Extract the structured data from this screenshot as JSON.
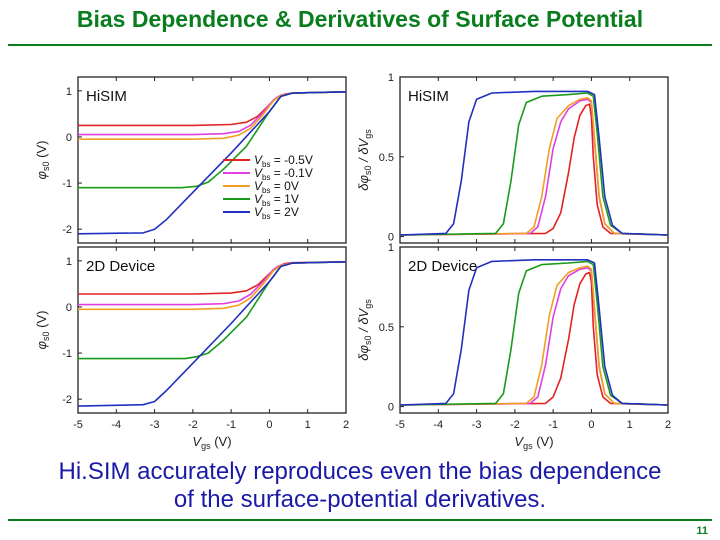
{
  "slide": {
    "title": "Bias Dependence & Derivatives of Surface Potential",
    "caption_line1": "Hi.SIM accurately reproduces even the bias dependence",
    "caption_line2": "of the surface-potential derivatives.",
    "page_number": "11"
  },
  "colors": {
    "title": "#0a7d1e",
    "caption": "#1a1aa8",
    "series": [
      "#e32222",
      "#e040e0",
      "#f0a020",
      "#1a9a1a",
      "#2030c0"
    ]
  },
  "chart_data": [
    {
      "type": "line",
      "id": "phi_hisim",
      "panel_label": "HiSIM",
      "ylabel_main": "φ",
      "ylabel_sub": "s0",
      "ylabel_unit": " (V)",
      "ylim": [
        -2.3,
        1.3
      ],
      "yticks": [
        "1",
        "0",
        "-1",
        "-2"
      ],
      "ytick_values": [
        1,
        0,
        -1,
        -2
      ],
      "xlim": [
        -5,
        2
      ],
      "series": [
        {
          "name": "V_bs = -0.5V",
          "x": [
            -5,
            -2.0,
            -1.0,
            -0.6,
            -0.3,
            0.0,
            0.2,
            0.4,
            0.6,
            2.0
          ],
          "y": [
            0.25,
            0.25,
            0.27,
            0.32,
            0.45,
            0.7,
            0.86,
            0.93,
            0.95,
            0.98
          ]
        },
        {
          "name": "V_bs = -0.1V",
          "x": [
            -5,
            -2.0,
            -1.2,
            -0.8,
            -0.5,
            -0.2,
            0.1,
            0.3,
            0.6,
            2.0
          ],
          "y": [
            0.05,
            0.05,
            0.07,
            0.12,
            0.25,
            0.5,
            0.8,
            0.91,
            0.95,
            0.98
          ]
        },
        {
          "name": "V_bs = 0V",
          "x": [
            -5,
            -2.0,
            -1.2,
            -0.8,
            -0.5,
            -0.2,
            0.1,
            0.3,
            0.6,
            2.0
          ],
          "y": [
            -0.05,
            -0.05,
            -0.03,
            0.04,
            0.18,
            0.45,
            0.78,
            0.9,
            0.95,
            0.98
          ]
        },
        {
          "name": "V_bs = 1V",
          "x": [
            -5,
            -2.3,
            -1.9,
            -1.6,
            -1.2,
            -0.6,
            0.0,
            0.3,
            0.6,
            2.0
          ],
          "y": [
            -1.1,
            -1.1,
            -1.07,
            -0.98,
            -0.7,
            -0.2,
            0.55,
            0.88,
            0.95,
            0.98
          ]
        },
        {
          "name": "V_bs = 2V",
          "x": [
            -5,
            -3.3,
            -3.0,
            -2.7,
            -2.0,
            -1.0,
            0.0,
            0.3,
            0.6,
            2.0
          ],
          "y": [
            -2.1,
            -2.08,
            -2.0,
            -1.8,
            -1.2,
            -0.35,
            0.55,
            0.88,
            0.95,
            0.98
          ]
        }
      ],
      "legend": {
        "placement": "center-right",
        "entries": [
          {
            "main": "V",
            "sub": "bs",
            "value": " = -0.5V"
          },
          {
            "main": "V",
            "sub": "bs",
            "value": " = -0.1V"
          },
          {
            "main": "V",
            "sub": "bs",
            "value": " = 0V"
          },
          {
            "main": "V",
            "sub": "bs",
            "value": " = 1V"
          },
          {
            "main": "V",
            "sub": "bs",
            "value": " = 2V"
          }
        ]
      }
    },
    {
      "type": "line",
      "id": "deriv_hisim",
      "panel_label": "HiSIM",
      "ylabel_main": "δφ",
      "ylabel_sub": "s0",
      "ylabel_mid": " / δV",
      "ylabel_sub2": "gs",
      "ylim": [
        -0.04,
        1.0
      ],
      "yticks": [
        "1",
        "0.5",
        "0"
      ],
      "ytick_values": [
        1,
        0.5,
        0
      ],
      "xlim": [
        -5,
        2
      ],
      "series": [
        {
          "name": "V_bs = -0.5V",
          "x": [
            -5,
            -1.2,
            -1.0,
            -0.8,
            -0.6,
            -0.45,
            -0.3,
            -0.15,
            -0.05,
            0.0,
            0.05,
            0.15,
            0.3,
            0.5,
            2.0
          ],
          "y": [
            0.01,
            0.02,
            0.05,
            0.15,
            0.4,
            0.62,
            0.76,
            0.82,
            0.83,
            0.75,
            0.5,
            0.2,
            0.06,
            0.02,
            0.01
          ]
        },
        {
          "name": "V_bs = -0.1V",
          "x": [
            -5,
            -1.6,
            -1.4,
            -1.2,
            -1.0,
            -0.8,
            -0.6,
            -0.3,
            -0.1,
            0.0,
            0.08,
            0.2,
            0.35,
            0.6,
            2.0
          ],
          "y": [
            0.01,
            0.02,
            0.06,
            0.25,
            0.55,
            0.72,
            0.8,
            0.85,
            0.86,
            0.84,
            0.6,
            0.25,
            0.08,
            0.02,
            0.01
          ]
        },
        {
          "name": "V_bs = 0V",
          "x": [
            -5,
            -1.7,
            -1.5,
            -1.3,
            -1.1,
            -0.9,
            -0.6,
            -0.3,
            -0.1,
            0.0,
            0.08,
            0.2,
            0.35,
            0.6,
            2.0
          ],
          "y": [
            0.01,
            0.02,
            0.06,
            0.25,
            0.55,
            0.74,
            0.82,
            0.86,
            0.87,
            0.85,
            0.62,
            0.26,
            0.08,
            0.02,
            0.01
          ]
        },
        {
          "name": "V_bs = 1V",
          "x": [
            -5,
            -2.5,
            -2.3,
            -2.1,
            -1.9,
            -1.7,
            -1.3,
            -0.6,
            -0.1,
            0.05,
            0.15,
            0.3,
            0.5,
            0.8,
            2.0
          ],
          "y": [
            0.01,
            0.02,
            0.08,
            0.35,
            0.7,
            0.84,
            0.88,
            0.89,
            0.9,
            0.88,
            0.65,
            0.25,
            0.07,
            0.02,
            0.01
          ]
        },
        {
          "name": "V_bs = 2V",
          "x": [
            -5,
            -3.8,
            -3.6,
            -3.4,
            -3.2,
            -3.0,
            -2.6,
            -1.5,
            -0.1,
            0.08,
            0.2,
            0.35,
            0.55,
            0.8,
            2.0
          ],
          "y": [
            0.01,
            0.02,
            0.08,
            0.35,
            0.72,
            0.86,
            0.9,
            0.91,
            0.91,
            0.89,
            0.62,
            0.25,
            0.07,
            0.02,
            0.01
          ]
        }
      ]
    },
    {
      "type": "line",
      "id": "phi_2d",
      "panel_label": "2D Device",
      "ylabel_main": "φ",
      "ylabel_sub": "s0",
      "ylabel_unit": " (V)",
      "ylim": [
        -2.3,
        1.3
      ],
      "yticks": [
        "1",
        "0",
        "-1",
        "-2"
      ],
      "ytick_values": [
        1,
        0,
        -1,
        -2
      ],
      "xlim": [
        -5,
        2
      ],
      "xticks": [
        "-5",
        "-4",
        "-3",
        "-2",
        "-1",
        "0",
        "1",
        "2"
      ],
      "xtick_values": [
        -5,
        -4,
        -3,
        -2,
        -1,
        0,
        1,
        2
      ],
      "xlabel_main": "V",
      "xlabel_sub": "gs",
      "xlabel_unit": " (V)",
      "series": [
        {
          "name": "V_bs = -0.5V",
          "x": [
            -5,
            -2.0,
            -1.0,
            -0.6,
            -0.3,
            0.0,
            0.2,
            0.4,
            0.6,
            2.0
          ],
          "y": [
            0.28,
            0.28,
            0.3,
            0.35,
            0.48,
            0.72,
            0.87,
            0.94,
            0.96,
            0.98
          ]
        },
        {
          "name": "V_bs = -0.1V",
          "x": [
            -5,
            -2.0,
            -1.2,
            -0.8,
            -0.5,
            -0.2,
            0.1,
            0.3,
            0.6,
            2.0
          ],
          "y": [
            0.05,
            0.05,
            0.07,
            0.13,
            0.27,
            0.52,
            0.81,
            0.91,
            0.95,
            0.98
          ]
        },
        {
          "name": "V_bs = 0V",
          "x": [
            -5,
            -2.0,
            -1.2,
            -0.8,
            -0.5,
            -0.2,
            0.1,
            0.3,
            0.6,
            2.0
          ],
          "y": [
            -0.05,
            -0.05,
            -0.03,
            0.04,
            0.19,
            0.46,
            0.78,
            0.9,
            0.95,
            0.98
          ]
        },
        {
          "name": "V_bs = 1V",
          "x": [
            -5,
            -2.2,
            -1.9,
            -1.6,
            -1.2,
            -0.6,
            0.0,
            0.3,
            0.6,
            2.0
          ],
          "y": [
            -1.12,
            -1.12,
            -1.08,
            -1.0,
            -0.72,
            -0.22,
            0.55,
            0.88,
            0.95,
            0.98
          ]
        },
        {
          "name": "V_bs = 2V",
          "x": [
            -5,
            -3.3,
            -3.0,
            -2.7,
            -2.0,
            -1.0,
            0.0,
            0.3,
            0.6,
            2.0
          ],
          "y": [
            -2.15,
            -2.12,
            -2.05,
            -1.82,
            -1.22,
            -0.36,
            0.55,
            0.88,
            0.95,
            0.98
          ]
        }
      ]
    },
    {
      "type": "line",
      "id": "deriv_2d",
      "panel_label": "2D Device",
      "ylabel_main": "δφ",
      "ylabel_sub": "s0",
      "ylabel_mid": " / δV",
      "ylabel_sub2": "gs",
      "ylim": [
        -0.04,
        1.0
      ],
      "yticks": [
        "1",
        "0.5",
        "0"
      ],
      "ytick_values": [
        1,
        0.5,
        0
      ],
      "xlim": [
        -5,
        2
      ],
      "xticks": [
        "-5",
        "-4",
        "-3",
        "-2",
        "-1",
        "0",
        "1",
        "2"
      ],
      "xtick_values": [
        -5,
        -4,
        -3,
        -2,
        -1,
        0,
        1,
        2
      ],
      "xlabel_main": "V",
      "xlabel_sub": "gs",
      "xlabel_unit": " (V)",
      "series": [
        {
          "name": "V_bs = -0.5V",
          "x": [
            -5,
            -1.2,
            -1.0,
            -0.8,
            -0.6,
            -0.45,
            -0.3,
            -0.15,
            -0.05,
            0.0,
            0.05,
            0.15,
            0.3,
            0.5,
            2.0
          ],
          "y": [
            0.01,
            0.02,
            0.06,
            0.18,
            0.42,
            0.64,
            0.77,
            0.83,
            0.84,
            0.78,
            0.5,
            0.2,
            0.06,
            0.02,
            0.01
          ]
        },
        {
          "name": "V_bs = -0.1V",
          "x": [
            -5,
            -1.6,
            -1.4,
            -1.2,
            -1.0,
            -0.8,
            -0.6,
            -0.3,
            -0.1,
            0.0,
            0.08,
            0.2,
            0.35,
            0.6,
            2.0
          ],
          "y": [
            0.01,
            0.02,
            0.06,
            0.26,
            0.56,
            0.74,
            0.82,
            0.86,
            0.87,
            0.85,
            0.6,
            0.25,
            0.08,
            0.02,
            0.01
          ]
        },
        {
          "name": "V_bs = 0V",
          "x": [
            -5,
            -1.7,
            -1.5,
            -1.3,
            -1.1,
            -0.9,
            -0.6,
            -0.3,
            -0.1,
            0.0,
            0.08,
            0.2,
            0.35,
            0.6,
            2.0
          ],
          "y": [
            0.01,
            0.02,
            0.06,
            0.26,
            0.57,
            0.76,
            0.84,
            0.87,
            0.88,
            0.86,
            0.62,
            0.26,
            0.08,
            0.02,
            0.01
          ]
        },
        {
          "name": "V_bs = 1V",
          "x": [
            -5,
            -2.5,
            -2.3,
            -2.1,
            -1.9,
            -1.7,
            -1.3,
            -0.6,
            -0.1,
            0.05,
            0.15,
            0.3,
            0.5,
            0.8,
            2.0
          ],
          "y": [
            0.01,
            0.02,
            0.08,
            0.36,
            0.71,
            0.85,
            0.89,
            0.9,
            0.91,
            0.89,
            0.65,
            0.25,
            0.07,
            0.02,
            0.01
          ]
        },
        {
          "name": "V_bs = 2V",
          "x": [
            -5,
            -3.8,
            -3.6,
            -3.4,
            -3.2,
            -3.0,
            -2.6,
            -1.5,
            -0.1,
            0.08,
            0.2,
            0.35,
            0.55,
            0.8,
            2.0
          ],
          "y": [
            0.01,
            0.02,
            0.08,
            0.36,
            0.73,
            0.87,
            0.91,
            0.92,
            0.92,
            0.9,
            0.62,
            0.25,
            0.07,
            0.02,
            0.01
          ]
        }
      ]
    }
  ]
}
